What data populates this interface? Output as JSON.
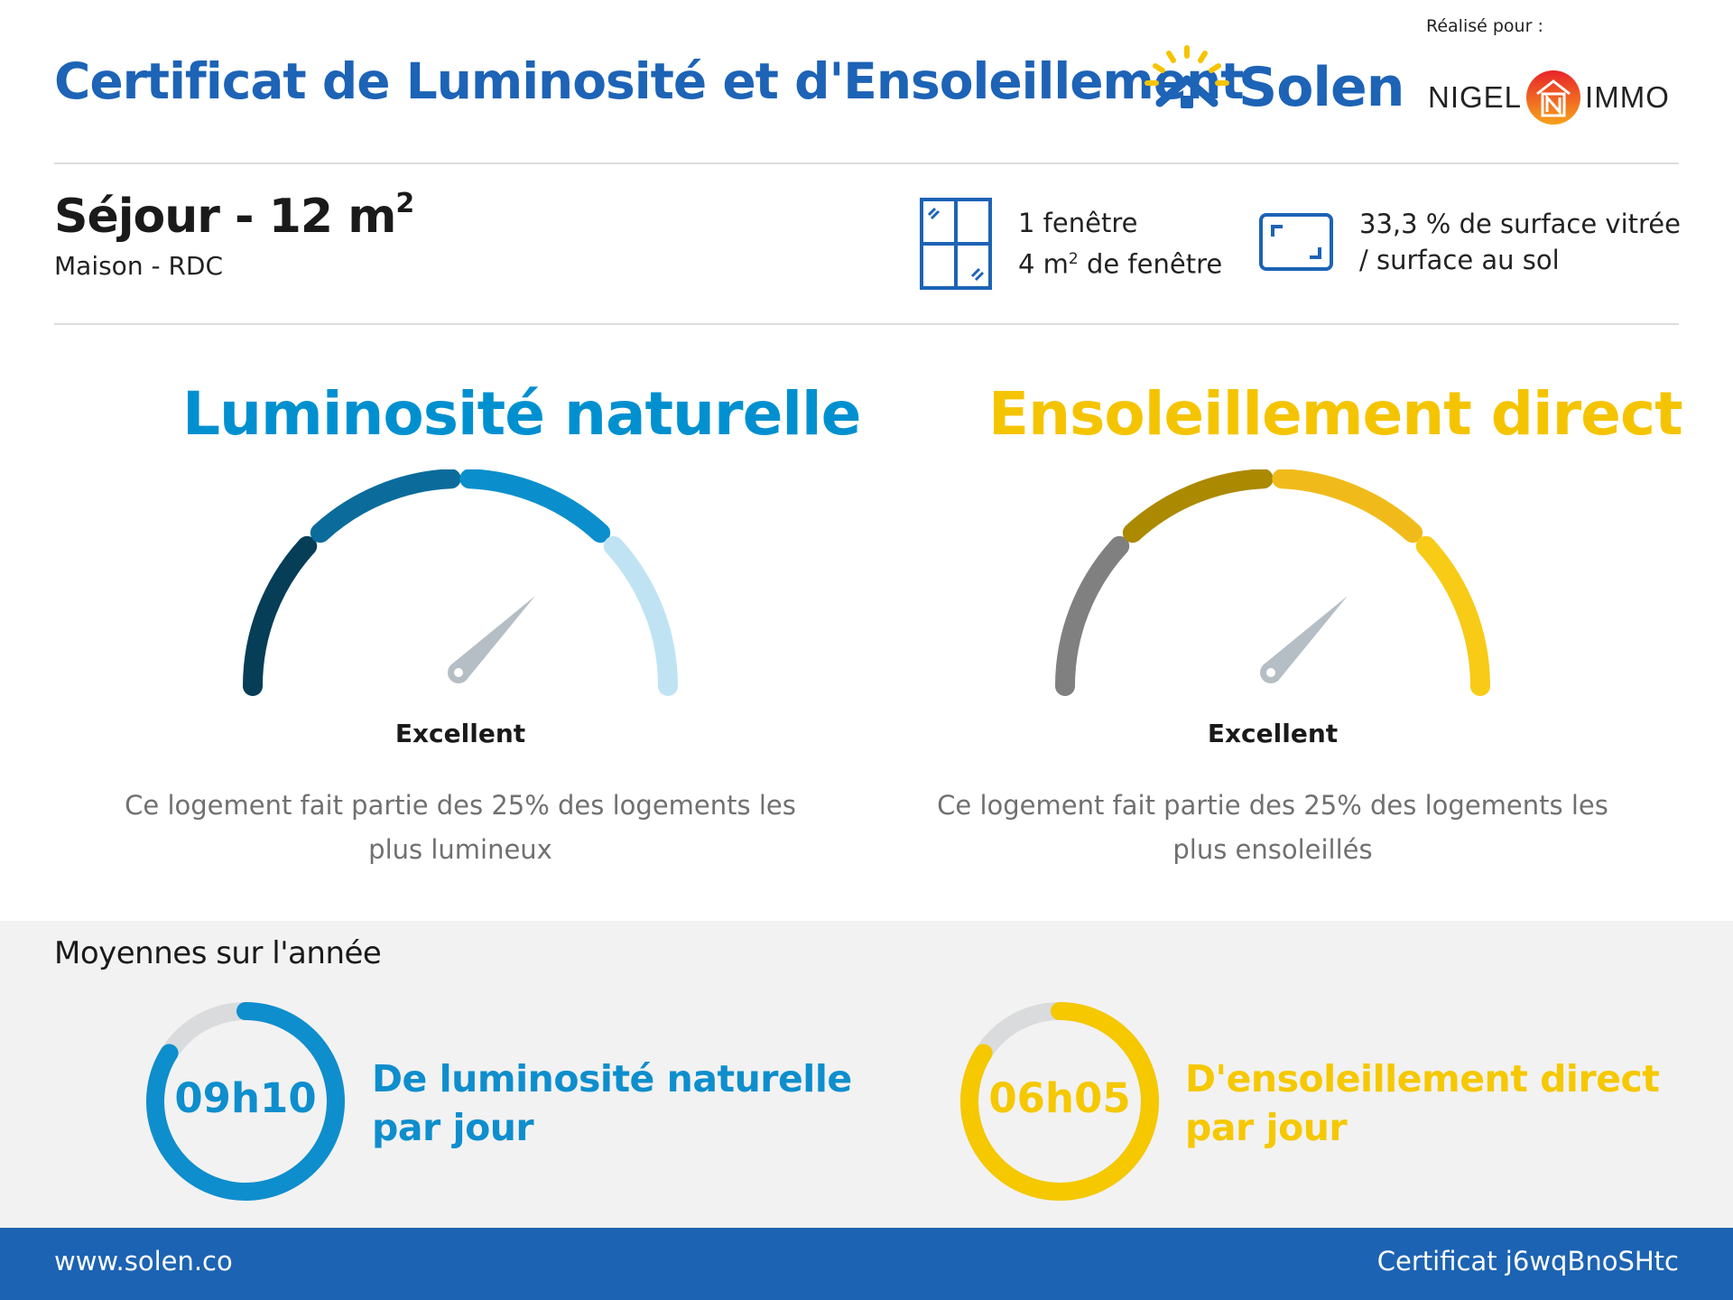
{
  "header": {
    "title": "Certificat de Luminosité et d'Ensoleillement",
    "brand_name": "Solen",
    "made_for_label": "Réalisé pour :",
    "client_left": "NIGEL",
    "client_right": "IMMO",
    "brand_color": "#1d63b6"
  },
  "room": {
    "title": "Séjour - 12 m",
    "title_sup": "2",
    "subtitle": "Maison - RDC"
  },
  "specs": {
    "window_count": "1 fenêtre",
    "window_area_prefix": "4 m",
    "window_area_sup": "2",
    "window_area_suffix": " de fenêtre",
    "glazing_line1": "33,3 % de surface vitrée",
    "glazing_line2": "/ surface au sol"
  },
  "luminosity": {
    "title": "Luminosité naturelle",
    "rating": "Excellent",
    "description": "Ce logement fait partie des 25% des logements les plus lumineux",
    "color": "#0090d0",
    "gauge_level": 0.75,
    "segment_colors": [
      "#063d57",
      "#0b6c9c",
      "#0a8fcc",
      "#c0e3f3"
    ]
  },
  "sunlight": {
    "title": "Ensoleillement direct",
    "rating": "Excellent",
    "description": "Ce logement fait partie des 25% des logements les plus ensoleillés",
    "color": "#f5c400",
    "gauge_level": 0.75,
    "segment_colors": [
      "#808080",
      "#ab8900",
      "#f0bb1a",
      "#f7cb16"
    ]
  },
  "averages": {
    "title": "Moyennes sur l'année",
    "luminosity": {
      "value": "09h10",
      "label_line1": "De luminosité naturelle",
      "label_line2": "par jour",
      "fraction": 0.84,
      "color": "#0e8ecd"
    },
    "sunlight": {
      "value": "06h05",
      "label_line1": "D'ensoleillement direct",
      "label_line2": "par jour",
      "fraction": 0.84,
      "color": "#f5c800"
    }
  },
  "footer": {
    "website": "www.solen.co",
    "certificate": "Certificat j6wqBnoSHtc"
  }
}
